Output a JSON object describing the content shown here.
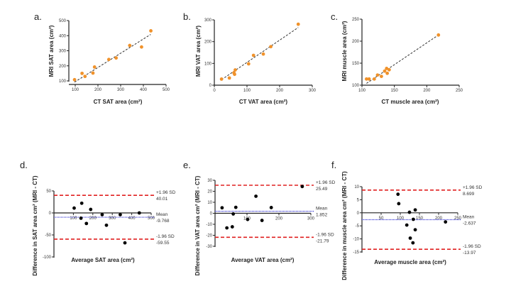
{
  "colors": {
    "scatter_point": "#f0922b",
    "ba_point": "#000000",
    "fit_line": "#333333",
    "limit_line": "#e02020",
    "mean_line": "#2a2ad0"
  },
  "chart_data": [
    {
      "panel": "a.",
      "type": "scatter",
      "xlabel": "CT SAT area (cm²)",
      "ylabel": "MRI SAT area (cm²)",
      "xlim": [
        100,
        500
      ],
      "ylim": [
        100,
        500
      ],
      "xticks": [
        100,
        200,
        300,
        400,
        500
      ],
      "yticks": [
        100,
        200,
        300,
        400,
        500
      ],
      "points": [
        [
          97,
          108
        ],
        [
          130,
          150
        ],
        [
          143,
          130
        ],
        [
          178,
          152
        ],
        [
          185,
          192
        ],
        [
          248,
          242
        ],
        [
          280,
          252
        ],
        [
          340,
          335
        ],
        [
          392,
          325
        ],
        [
          433,
          432
        ]
      ],
      "fit_line": [
        [
          97,
          92
        ],
        [
          432,
          408
        ]
      ]
    },
    {
      "panel": "b.",
      "type": "scatter",
      "xlabel": "CT VAT area (cm²)",
      "ylabel": "MRI VAT area (cm²)",
      "xlim": [
        0,
        300
      ],
      "ylim": [
        0,
        300
      ],
      "xticks": [
        0,
        100,
        200,
        300
      ],
      "yticks": [
        0,
        100,
        200,
        300
      ],
      "points": [
        [
          22,
          28
        ],
        [
          46,
          33
        ],
        [
          60,
          57
        ],
        [
          62,
          50
        ],
        [
          64,
          70
        ],
        [
          105,
          98
        ],
        [
          120,
          137
        ],
        [
          150,
          143
        ],
        [
          173,
          177
        ],
        [
          257,
          280
        ]
      ],
      "fit_line": [
        [
          22,
          25
        ],
        [
          257,
          265
        ]
      ]
    },
    {
      "panel": "c.",
      "type": "scatter",
      "xlabel": "CT muscle area (cm²)",
      "ylabel": "MRI muscle area (cm²)",
      "xlim": [
        100,
        250
      ],
      "ylim": [
        100,
        250
      ],
      "xticks": [
        100,
        150,
        200,
        250
      ],
      "yticks": [
        100,
        150,
        200,
        250
      ],
      "points": [
        [
          107,
          114
        ],
        [
          111,
          114
        ],
        [
          119,
          114
        ],
        [
          124,
          123
        ],
        [
          130,
          120
        ],
        [
          135,
          132
        ],
        [
          138,
          138
        ],
        [
          139,
          127
        ],
        [
          142,
          135
        ],
        [
          218,
          214
        ]
      ],
      "fit_line": [
        [
          107,
          104
        ],
        [
          218,
          214
        ]
      ]
    },
    {
      "panel": "d.",
      "type": "scatter",
      "xlabel": "Average SAT area (cm²)",
      "ylabel": "Difference in SAT area cm² (MRI - CT)",
      "xlim": [
        0,
        500
      ],
      "ylim": [
        -100,
        50
      ],
      "xticks": [
        100,
        200,
        300,
        400,
        500
      ],
      "yticks": [
        -100,
        -50,
        0,
        50
      ],
      "points": [
        [
          104,
          11
        ],
        [
          143,
          22
        ],
        [
          139,
          -12
        ],
        [
          167,
          -24
        ],
        [
          189,
          8
        ],
        [
          248,
          -4
        ],
        [
          270,
          -28
        ],
        [
          341,
          -4
        ],
        [
          365,
          -68
        ],
        [
          439,
          0
        ]
      ],
      "limits": {
        "upper": {
          "label": "+1.96 SD",
          "value": 40.01,
          "text": "40.01"
        },
        "mean": {
          "label": "Mean",
          "value": -9.768,
          "text": "-9.768"
        },
        "lower": {
          "label": "-1.96 SD",
          "value": -59.55,
          "text": "-59.55"
        }
      }
    },
    {
      "panel": "e.",
      "type": "scatter",
      "xlabel": "Average VAT area (cm²)",
      "ylabel": "Difference in VAT area cm² (MRI - CT)",
      "xlim": [
        0,
        300
      ],
      "ylim": [
        -30,
        30
      ],
      "xticks": [
        100,
        200,
        300
      ],
      "yticks": [
        -30,
        -20,
        -10,
        0,
        10,
        20,
        30
      ],
      "points": [
        [
          22,
          5
        ],
        [
          37,
          -13.3
        ],
        [
          54,
          -12.3
        ],
        [
          57,
          -0.6
        ],
        [
          65,
          5.4
        ],
        [
          102,
          -5.6
        ],
        [
          128,
          15.5
        ],
        [
          147,
          -6.5
        ],
        [
          176,
          5.2
        ],
        [
          273,
          24.3
        ]
      ],
      "limits": {
        "upper": {
          "label": "+1.96 SD",
          "value": 25.49,
          "text": "25.49"
        },
        "mean": {
          "label": "Mean",
          "value": 1.852,
          "text": "1.852"
        },
        "lower": {
          "label": "-1.96 SD",
          "value": -21.79,
          "text": "-21.79"
        }
      }
    },
    {
      "panel": "f.",
      "type": "scatter",
      "xlabel": "Average muscle area (cm²)",
      "ylabel": "Difference in muscle area cm² (MRI - CT)",
      "xlim": [
        0,
        250
      ],
      "ylim": [
        -15,
        10
      ],
      "xticks": [
        50,
        100,
        150,
        200,
        250
      ],
      "yticks": [
        -15,
        -10,
        -5,
        0,
        5,
        10
      ],
      "points": [
        [
          94,
          7.1
        ],
        [
          96,
          3.5
        ],
        [
          124,
          0.2
        ],
        [
          139,
          1.1
        ],
        [
          134,
          -2.5
        ],
        [
          117,
          -4.7
        ],
        [
          139,
          -6.5
        ],
        [
          126,
          -9.7
        ],
        [
          133,
          -11.5
        ],
        [
          218,
          -3.5
        ]
      ],
      "limits": {
        "upper": {
          "label": "+1.96 SD",
          "value": 8.699,
          "text": "8.699"
        },
        "mean": {
          "label": "Mean",
          "value": -2.637,
          "text": "-2.637"
        },
        "lower": {
          "label": "-1.96 SD",
          "value": -13.97,
          "text": "-13.97"
        }
      }
    }
  ]
}
